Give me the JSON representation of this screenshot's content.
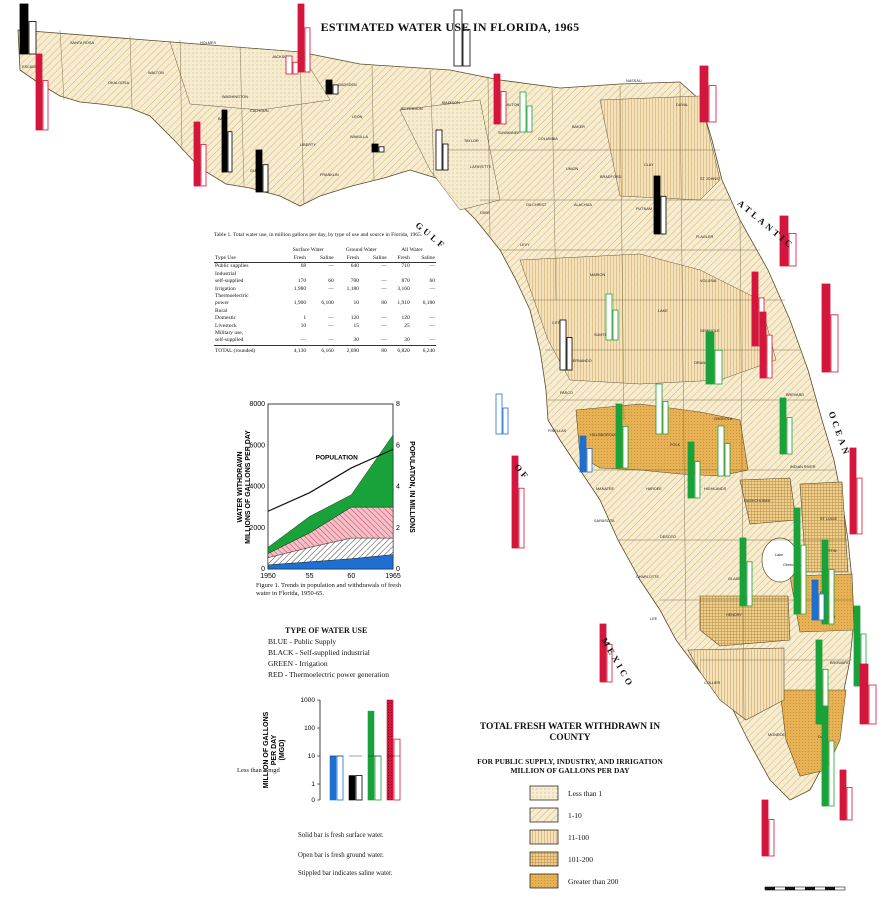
{
  "title": "ESTIMATED WATER USE IN FLORIDA, 1965",
  "colors": {
    "public_supply": "#1f6fd1",
    "industrial": "#000000",
    "irrigation": "#19a23a",
    "thermoelectric": "#d4163c",
    "land_low": "#f6ecd0",
    "land_high": "#e8b254"
  },
  "table": {
    "caption": "Table 1. Total water use, in million gallons per day, by type of use and source in Florida, 1965.",
    "group_headers": [
      "Surface Water",
      "Ground Water",
      "All Water"
    ],
    "col_headers": [
      "Type Use",
      "Fresh",
      "Saline",
      "Fresh",
      "Saline",
      "Fresh",
      "Saline"
    ],
    "rows": [
      [
        "Public supplies",
        "68",
        "—",
        "640",
        "—",
        "710",
        "—"
      ],
      [
        "Industrial",
        "",
        "",
        "",
        "",
        "",
        ""
      ],
      [
        "  self-supplied",
        "170",
        "60",
        "700",
        "—",
        "870",
        "60"
      ],
      [
        "Irrigation",
        "1,980",
        "—",
        "1,180",
        "—",
        "3,160",
        "—"
      ],
      [
        "Thermoelectric",
        "",
        "",
        "",
        "",
        "",
        ""
      ],
      [
        "  power",
        "1,900",
        "6,100",
        "10",
        "80",
        "1,910",
        "6,180"
      ],
      [
        "Rural",
        "",
        "",
        "",
        "",
        "",
        ""
      ],
      [
        "  Domestic",
        "1",
        "—",
        "120",
        "—",
        "120",
        "—"
      ],
      [
        "  Livestock",
        "10",
        "—",
        "15",
        "—",
        "25",
        "—"
      ],
      [
        "Military use,",
        "",
        "",
        "",
        "",
        "",
        ""
      ],
      [
        "  self-supplied",
        "—",
        "—",
        "30",
        "—",
        "30",
        "—"
      ]
    ],
    "total": [
      "TOTAL (rounded)",
      "4,130",
      "6,160",
      "2,690",
      "80",
      "6,820",
      "6,240"
    ]
  },
  "chart_data": [
    {
      "type": "area",
      "x": [
        1950,
        1955,
        1960,
        1965
      ],
      "xticks": [
        "1950",
        "55",
        "60",
        "1965"
      ],
      "ylabel": "WATER WITHDRAWN MILLIONS OF GALLONS PER DAY",
      "y2label": "POPULATION, IN MILLIONS",
      "ylim": [
        0,
        8000
      ],
      "yticks": [
        0,
        2000,
        4000,
        6000,
        8000
      ],
      "y2lim": [
        0,
        8
      ],
      "y2ticks": [
        0,
        2,
        4,
        6,
        8
      ],
      "annotation": "POPULATION",
      "stack": [
        {
          "color": "#1f6fd1",
          "values": [
            200,
            350,
            500,
            700
          ]
        },
        {
          "color": "#ffffff",
          "pattern": "hatch-black",
          "values": [
            350,
            700,
            1000,
            800
          ]
        },
        {
          "color": "#f4c0c8",
          "pattern": "hatch-red",
          "values": [
            200,
            700,
            1500,
            1500
          ]
        },
        {
          "color": "#19a23a",
          "values": [
            300,
            800,
            600,
            3500
          ]
        }
      ],
      "population": [
        2.8,
        3.7,
        4.9,
        5.8
      ],
      "caption": "Figure 1. Trends in population and withdrawals of fresh water in Florida, 1950-65."
    },
    {
      "type": "bar",
      "ylabel": "MILLION OF GALLONS PER DAY (MGD)",
      "yscale": "log",
      "yticks": [
        "1000",
        "100",
        "10",
        "1",
        "0"
      ],
      "bars": [
        {
          "color": "#1f6fd1",
          "solid": 10,
          "open": 10
        },
        {
          "color": "#000000",
          "solid": 2,
          "open": 2
        },
        {
          "color": "#19a23a",
          "solid": 400,
          "open": 10
        },
        {
          "color": "#d4163c",
          "solid": 1000,
          "open": 40
        }
      ],
      "note": "Less than 1 mgd"
    }
  ],
  "legend": {
    "title": "TYPE OF WATER USE",
    "items": [
      "BLUE - Public Supply",
      "BLACK - Self-supplied industrial",
      "GREEN - Irrigation",
      "RED - Thermoelectric power generation"
    ]
  },
  "notes": [
    "Solid bar is fresh surface water.",
    "Open bar is fresh ground water.",
    "Stippled bar indicates saline water."
  ],
  "total_legend": {
    "title": "TOTAL FRESH WATER WITHDRAWN IN COUNTY",
    "subtitle": "FOR PUBLIC SUPPLY, INDUSTRY, AND IRRIGATION MILLION OF GALLONS PER DAY",
    "categories": [
      "Less than 1",
      "1-10",
      "11-100",
      "101-200",
      "Greater than 200"
    ]
  },
  "sea_labels": {
    "atlantic": "ATLANTIC",
    "ocean": "OCEAN",
    "gulf": "GULF",
    "of": "OF",
    "mexico": "MEXICO"
  },
  "counties": [
    [
      "ESCAMBIA",
      22,
      68
    ],
    [
      "SANTA ROSA",
      70,
      44
    ],
    [
      "OKALOOSA",
      108,
      84
    ],
    [
      "WALTON",
      148,
      74
    ],
    [
      "HOLMES",
      200,
      44
    ],
    [
      "WASHINGTON",
      222,
      98
    ],
    [
      "JACKSON",
      272,
      58
    ],
    [
      "BAY",
      218,
      120
    ],
    [
      "CALHOUN",
      250,
      112
    ],
    [
      "GADSDEN",
      338,
      86
    ],
    [
      "LIBERTY",
      300,
      146
    ],
    [
      "GULF",
      250,
      172
    ],
    [
      "FRANKLIN",
      320,
      176
    ],
    [
      "LEON",
      352,
      118
    ],
    [
      "WAKULLA",
      350,
      138
    ],
    [
      "JEFFERSON",
      400,
      110
    ],
    [
      "MADISON",
      442,
      104
    ],
    [
      "TAYLOR",
      464,
      142
    ],
    [
      "HAMILTON",
      500,
      106
    ],
    [
      "SUWANNEE",
      498,
      134
    ],
    [
      "LAFAYETTE",
      470,
      168
    ],
    [
      "COLUMBIA",
      538,
      140
    ],
    [
      "BAKER",
      572,
      128
    ],
    [
      "NASSAU",
      626,
      82
    ],
    [
      "DUVAL",
      676,
      106
    ],
    [
      "UNION",
      566,
      170
    ],
    [
      "BRADFORD",
      600,
      178
    ],
    [
      "CLAY",
      644,
      166
    ],
    [
      "ST JOHNS",
      700,
      180
    ],
    [
      "PUTNAM",
      636,
      210
    ],
    [
      "ALACHUA",
      574,
      206
    ],
    [
      "GILCHRIST",
      526,
      206
    ],
    [
      "DIXIE",
      480,
      214
    ],
    [
      "LEVY",
      520,
      246
    ],
    [
      "MARION",
      590,
      276
    ],
    [
      "FLAGLER",
      696,
      238
    ],
    [
      "VOLUSIA",
      700,
      282
    ],
    [
      "LAKE",
      658,
      312
    ],
    [
      "CITRUS",
      552,
      324
    ],
    [
      "SUMTER",
      594,
      336
    ],
    [
      "HERNANDO",
      570,
      362
    ],
    [
      "SEMINOLE",
      700,
      332
    ],
    [
      "ORANGE",
      694,
      364
    ],
    [
      "PASCO",
      560,
      394
    ],
    [
      "PINELLAS",
      548,
      432
    ],
    [
      "HILLSBOROUGH",
      590,
      436
    ],
    [
      "POLK",
      670,
      446
    ],
    [
      "OSCEOLA",
      714,
      420
    ],
    [
      "BREVARD",
      786,
      396
    ],
    [
      "INDIAN RIVER",
      790,
      468
    ],
    [
      "MANATEE",
      596,
      490
    ],
    [
      "HARDEE",
      646,
      490
    ],
    [
      "HIGHLANDS",
      704,
      490
    ],
    [
      "OKEECHOBEE",
      744,
      502
    ],
    [
      "ST LUCIE",
      820,
      520
    ],
    [
      "SARASOTA",
      594,
      522
    ],
    [
      "DESOTO",
      660,
      538
    ],
    [
      "MARTIN",
      822,
      552
    ],
    [
      "CHARLOTTE",
      636,
      578
    ],
    [
      "GLADES",
      728,
      580
    ],
    [
      "PALM",
      820,
      594
    ],
    [
      "BEACH",
      822,
      618
    ],
    [
      "LEE",
      650,
      620
    ],
    [
      "HENDRY",
      726,
      616
    ],
    [
      "BROWARD",
      830,
      664
    ],
    [
      "COLLIER",
      704,
      684
    ],
    [
      "MONROE",
      768,
      736
    ],
    [
      "DADE",
      818,
      738
    ],
    [
      "Lake",
      775,
      556
    ],
    [
      "Okeechobee",
      783,
      566
    ]
  ]
}
